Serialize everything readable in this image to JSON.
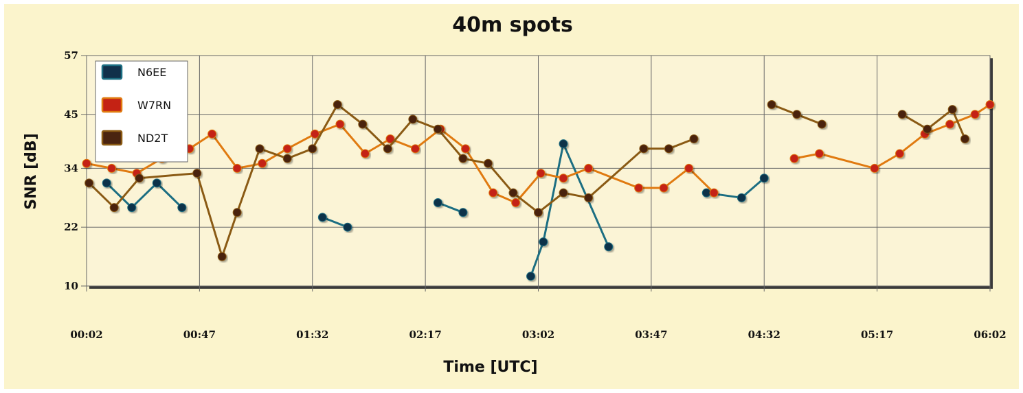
{
  "chart_data": {
    "type": "line",
    "title": "40m spots",
    "xlabel": "Time [UTC]",
    "ylabel": "SNR [dB]",
    "x_range_minutes": [
      2,
      362
    ],
    "xticks": [
      "00:02",
      "00:47",
      "01:32",
      "02:17",
      "03:02",
      "03:47",
      "04:32",
      "05:17",
      "06:02"
    ],
    "ylim": [
      10,
      57
    ],
    "yticks": [
      10,
      22,
      34,
      45,
      57
    ],
    "grid": true,
    "legend_position": "top-left",
    "series": [
      {
        "name": "N6EE",
        "color": "#1c6e82",
        "marker": "#11304a",
        "segments": [
          [
            [
              10,
              31
            ],
            [
              20,
              26
            ],
            [
              30,
              31
            ],
            [
              40,
              26
            ]
          ],
          [
            [
              96,
              24
            ],
            [
              106,
              22
            ]
          ],
          [
            [
              142,
              27
            ],
            [
              152,
              25
            ]
          ],
          [
            [
              179,
              12
            ],
            [
              184,
              19
            ],
            [
              192,
              39
            ],
            [
              210,
              18
            ]
          ],
          [
            [
              249,
              29
            ],
            [
              263,
              28
            ],
            [
              272,
              32
            ]
          ]
        ]
      },
      {
        "name": "W7RN",
        "color": "#e07a10",
        "marker": "#c42214",
        "segments": [
          [
            [
              2,
              35
            ],
            [
              12,
              34
            ],
            [
              22,
              33
            ],
            [
              32,
              36
            ],
            [
              43,
              38
            ],
            [
              52,
              41
            ],
            [
              62,
              34
            ],
            [
              72,
              35
            ],
            [
              82,
              38
            ],
            [
              93,
              41
            ],
            [
              103,
              43
            ],
            [
              113,
              37
            ],
            [
              123,
              40
            ],
            [
              133,
              38
            ],
            [
              143,
              42
            ],
            [
              153,
              38
            ],
            [
              164,
              29
            ],
            [
              173,
              27
            ],
            [
              183,
              33
            ],
            [
              192,
              32
            ],
            [
              202,
              34
            ],
            [
              222,
              30
            ],
            [
              232,
              30
            ],
            [
              242,
              34
            ],
            [
              252,
              29
            ]
          ],
          [
            [
              284,
              36
            ],
            [
              294,
              37
            ],
            [
              316,
              34
            ],
            [
              326,
              37
            ],
            [
              336,
              41
            ],
            [
              346,
              43
            ],
            [
              356,
              45
            ],
            [
              362,
              47
            ]
          ]
        ]
      },
      {
        "name": "ND2T",
        "color": "#8a5a14",
        "marker": "#4a2410",
        "segments": [
          [
            [
              3,
              31
            ],
            [
              13,
              26
            ],
            [
              23,
              32
            ],
            [
              46,
              33
            ],
            [
              56,
              16
            ],
            [
              62,
              25
            ],
            [
              71,
              38
            ],
            [
              82,
              36
            ],
            [
              92,
              38
            ],
            [
              102,
              47
            ],
            [
              112,
              43
            ],
            [
              122,
              38
            ],
            [
              132,
              44
            ],
            [
              142,
              42
            ],
            [
              152,
              36
            ],
            [
              162,
              35
            ],
            [
              172,
              29
            ],
            [
              182,
              25
            ],
            [
              192,
              29
            ],
            [
              202,
              28
            ],
            [
              224,
              38
            ],
            [
              234,
              38
            ],
            [
              244,
              40
            ]
          ],
          [
            [
              275,
              47
            ],
            [
              285,
              45
            ],
            [
              295,
              43
            ]
          ],
          [
            [
              327,
              45
            ],
            [
              337,
              42
            ],
            [
              347,
              46
            ],
            [
              352,
              40
            ]
          ]
        ]
      }
    ]
  }
}
